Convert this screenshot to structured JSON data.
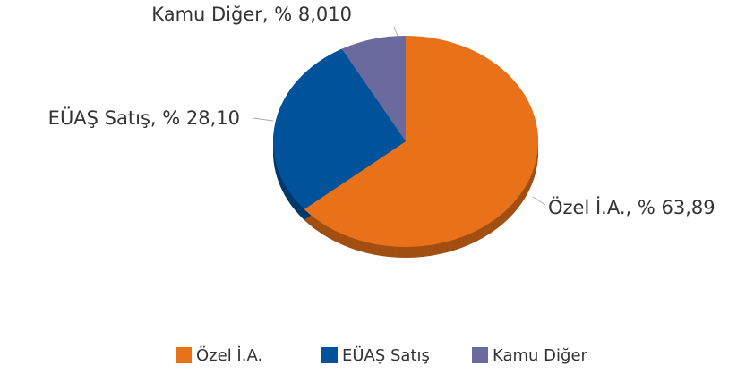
{
  "chart_data": {
    "type": "pie",
    "categories": [
      "Özel İ.A.",
      "EÜAŞ Satış",
      "Kamu Diğer"
    ],
    "values": [
      63.89,
      28.1,
      8.01
    ],
    "value_labels": [
      "Özel İ.A., % 63,89",
      "EÜAŞ Satış, % 28,10",
      "Kamu Diğer, % 8,010"
    ],
    "colors": [
      "#e8711a",
      "#00529b",
      "#6a6a9e"
    ],
    "legend": "bottom"
  }
}
